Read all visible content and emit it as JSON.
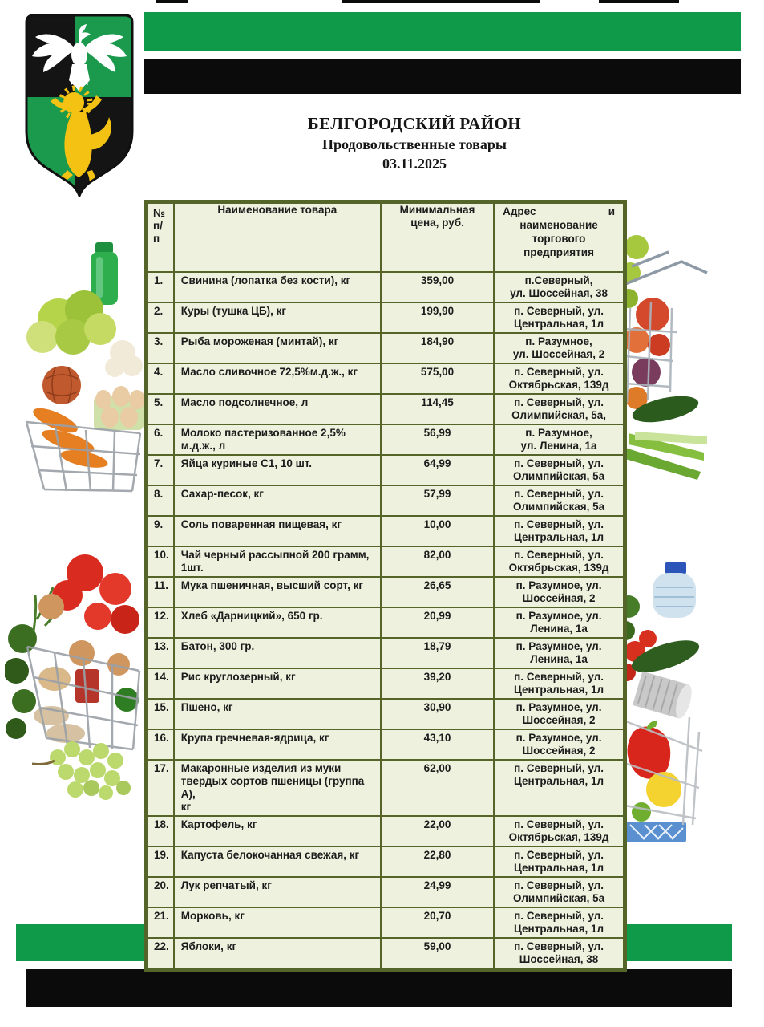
{
  "header": {
    "title": "БЕЛГОРОДСКИЙ РАЙОН",
    "subtitle": "Продовольственные товары",
    "date": "03.11.2025"
  },
  "colors": {
    "brand_green": "#0f9a49",
    "bar_black": "#0b0b0b",
    "table_bg": "#edf1dd",
    "table_border": "#556428",
    "crest_green": "#1b9a4e",
    "crest_black": "#141414",
    "crest_lion_gold": "#f3c212",
    "crest_eagle_white": "#ffffff"
  },
  "images": {
    "crest": "belgorod-district-coat-of-arms",
    "photo_top_left": "grocery-basket-with-lettuce-eggs-carrots-photo",
    "photo_top_right": "shopping-cart-with-apples-cucumber-green-onion-photo",
    "photo_bottom_left": "wire-basket-with-tomatoes-onions-grapes-photo",
    "photo_bottom_right": "basket-with-water-bottle-pepper-lemon-photo"
  },
  "table": {
    "headers": {
      "num": "№\nп/\nп",
      "name": "Наименование товара",
      "price": "Минимальная\nцена, руб.",
      "address_word": "Адрес",
      "address_and": "и",
      "address_line2": "наименование",
      "address_line3": "торгового предприятия"
    },
    "rows": [
      {
        "num": "1.",
        "name": "Свинина (лопатка без кости), кг",
        "price": "359,00",
        "address": "п.Северный,\nул. Шоссейная, 38"
      },
      {
        "num": "2.",
        "name": "Куры (тушка ЦБ), кг",
        "price": "199,90",
        "address": "п. Северный,  ул.\nЦентральная, 1л"
      },
      {
        "num": "3.",
        "name": "Рыба мороженая (минтай), кг",
        "price": "184,90",
        "address": "п. Разумное,\nул. Шоссейная, 2"
      },
      {
        "num": "4.",
        "name": "Масло сливочное 72,5%м.д.ж., кг",
        "price": "575,00",
        "address": "п. Северный, ул.\nОктябрьская, 139д"
      },
      {
        "num": "5.",
        "name": "Масло подсолнечное, л",
        "price": "114,45",
        "address": "п. Северный, ул.\nОлимпийская, 5а,"
      },
      {
        "num": "6.",
        "name": "Молоко пастеризованное 2,5%\nм.д.ж., л",
        "price": "56,99",
        "address": "п. Разумное,\nул. Ленина, 1а"
      },
      {
        "num": "7.",
        "name": "Яйца куриные С1, 10 шт.",
        "price": "64,99",
        "address": "п. Северный, ул.\nОлимпийская, 5а"
      },
      {
        "num": "8.",
        "name": "Сахар-песок, кг",
        "price": "57,99",
        "address": "п. Северный, ул.\nОлимпийская, 5а"
      },
      {
        "num": "9.",
        "name": "Соль поваренная пищевая, кг",
        "price": "10,00",
        "address": "п. Северный, ул.\nЦентральная, 1л"
      },
      {
        "num": "10.",
        "name": "Чай черный рассыпной 200 грамм,\n1шт.",
        "price": "82,00",
        "address": "п. Северный, ул.\nОктябрьская, 139д"
      },
      {
        "num": "11.",
        "name": "Мука пшеничная, высший сорт, кг",
        "price": "26,65",
        "address": "п. Разумное, ул.\nШоссейная, 2"
      },
      {
        "num": "12.",
        "name": "Хлеб «Дарницкий», 650 гр.",
        "price": "20,99",
        "address": "п. Разумное, ул.\nЛенина, 1а"
      },
      {
        "num": "13.",
        "name": "Батон, 300 гр.",
        "price": "18,79",
        "address": "п. Разумное, ул.\nЛенина, 1а"
      },
      {
        "num": "14.",
        "name": "Рис круглозерный, кг",
        "price": "39,20",
        "address": "п. Северный, ул.\nЦентральная, 1л"
      },
      {
        "num": "15.",
        "name": "Пшено, кг",
        "price": "30,90",
        "address": "п. Разумное, ул.\nШоссейная, 2"
      },
      {
        "num": "16.",
        "name": "Крупа гречневая-ядрица, кг",
        "price": "43,10",
        "address": "п. Разумное, ул.\nШоссейная, 2"
      },
      {
        "num": "17.",
        "name": "Макаронные изделия из муки\nтвердых сортов пшеницы (группа А),\nкг",
        "price": "62,00",
        "address": "п. Северный, ул.\nЦентральная, 1л"
      },
      {
        "num": "18.",
        "name": "Картофель, кг",
        "price": "22,00",
        "address": "п. Северный, ул.\nОктябрьская, 139д"
      },
      {
        "num": "19.",
        "name": "Капуста белокочанная свежая, кг",
        "price": "22,80",
        "address": "п. Северный, ул.\nЦентральная, 1л"
      },
      {
        "num": "20.",
        "name": "Лук репчатый, кг",
        "price": "24,99",
        "address": "п. Северный, ул.\nОлимпийская, 5а"
      },
      {
        "num": "21.",
        "name": "Морковь, кг",
        "price": "20,70",
        "address": "п. Северный, ул.\nЦентральная, 1л"
      },
      {
        "num": "22.",
        "name": "Яблоки, кг",
        "price": "59,00",
        "address": "п. Северный, ул.\nШоссейная, 38"
      }
    ]
  }
}
